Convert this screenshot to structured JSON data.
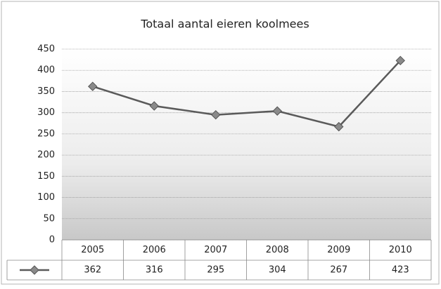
{
  "chart_data": {
    "type": "line",
    "title": "Totaal aantal eieren koolmees",
    "categories": [
      "2005",
      "2006",
      "2007",
      "2008",
      "2009",
      "2010"
    ],
    "values": [
      362,
      316,
      295,
      304,
      267,
      423
    ],
    "color": "#5a5a5a",
    "ylim": [
      0,
      450
    ],
    "yticks": [
      0,
      50,
      100,
      150,
      200,
      250,
      300,
      350,
      400,
      450
    ],
    "grid": true
  }
}
